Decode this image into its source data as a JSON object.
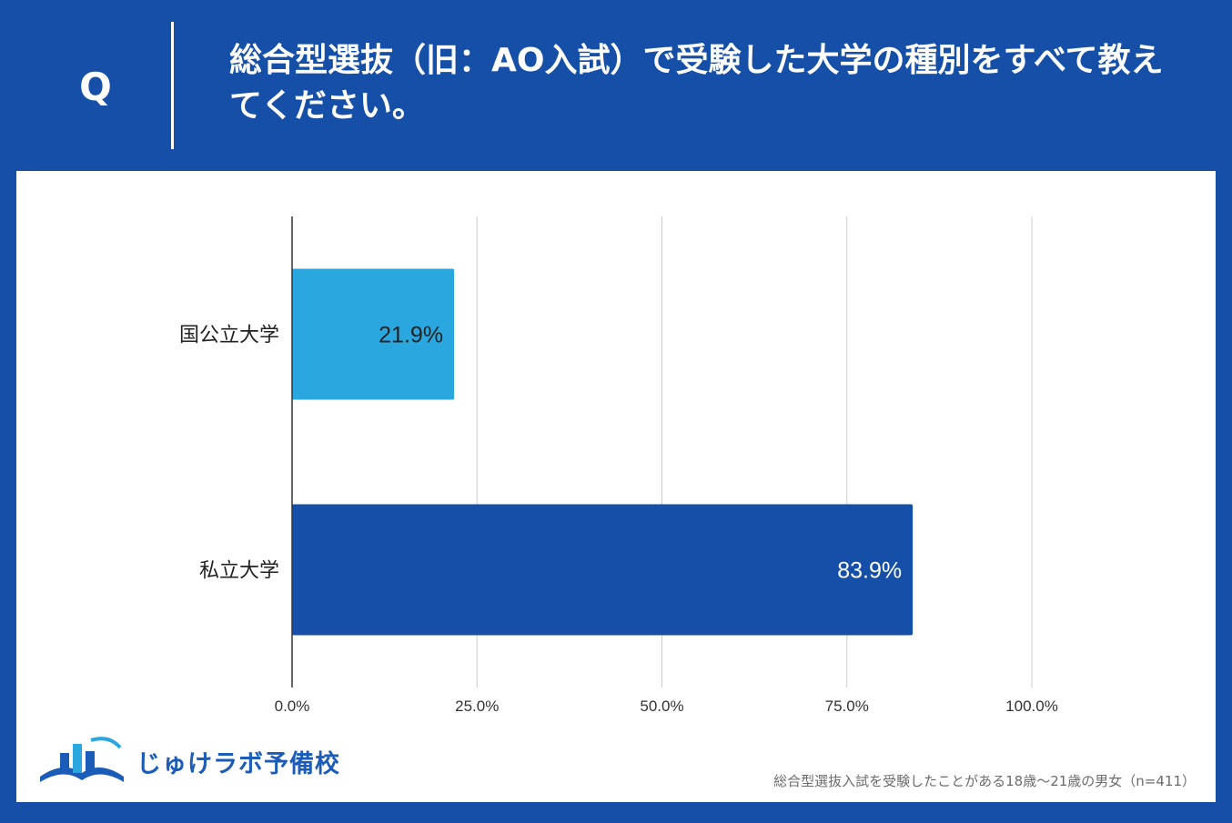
{
  "header": {
    "q_label": "Q",
    "question": "総合型選抜（旧：AO入試）で受験した大学の種別をすべて教えてください。"
  },
  "chart_data": {
    "type": "bar",
    "orientation": "horizontal",
    "categories": [
      "国公立大学",
      "私立大学"
    ],
    "values": [
      21.9,
      83.9
    ],
    "value_labels": [
      "21.9%",
      "83.9%"
    ],
    "bar_colors": [
      "#2ba7e0",
      "#154fa8"
    ],
    "label_colors": [
      "#222222",
      "#ffffff"
    ],
    "xlim": [
      0,
      100
    ],
    "x_ticks": [
      0,
      25,
      50,
      75,
      100
    ],
    "x_tick_labels": [
      "0.0%",
      "25.0%",
      "50.0%",
      "75.0%",
      "100.0%"
    ],
    "grid": true,
    "legend": "none"
  },
  "logo": {
    "text": "じゅけラボ予備校",
    "color": "#1b5cb8"
  },
  "footnote": "総合型選抜入試を受験したことがある18歳〜21歳の男女（n=411）"
}
